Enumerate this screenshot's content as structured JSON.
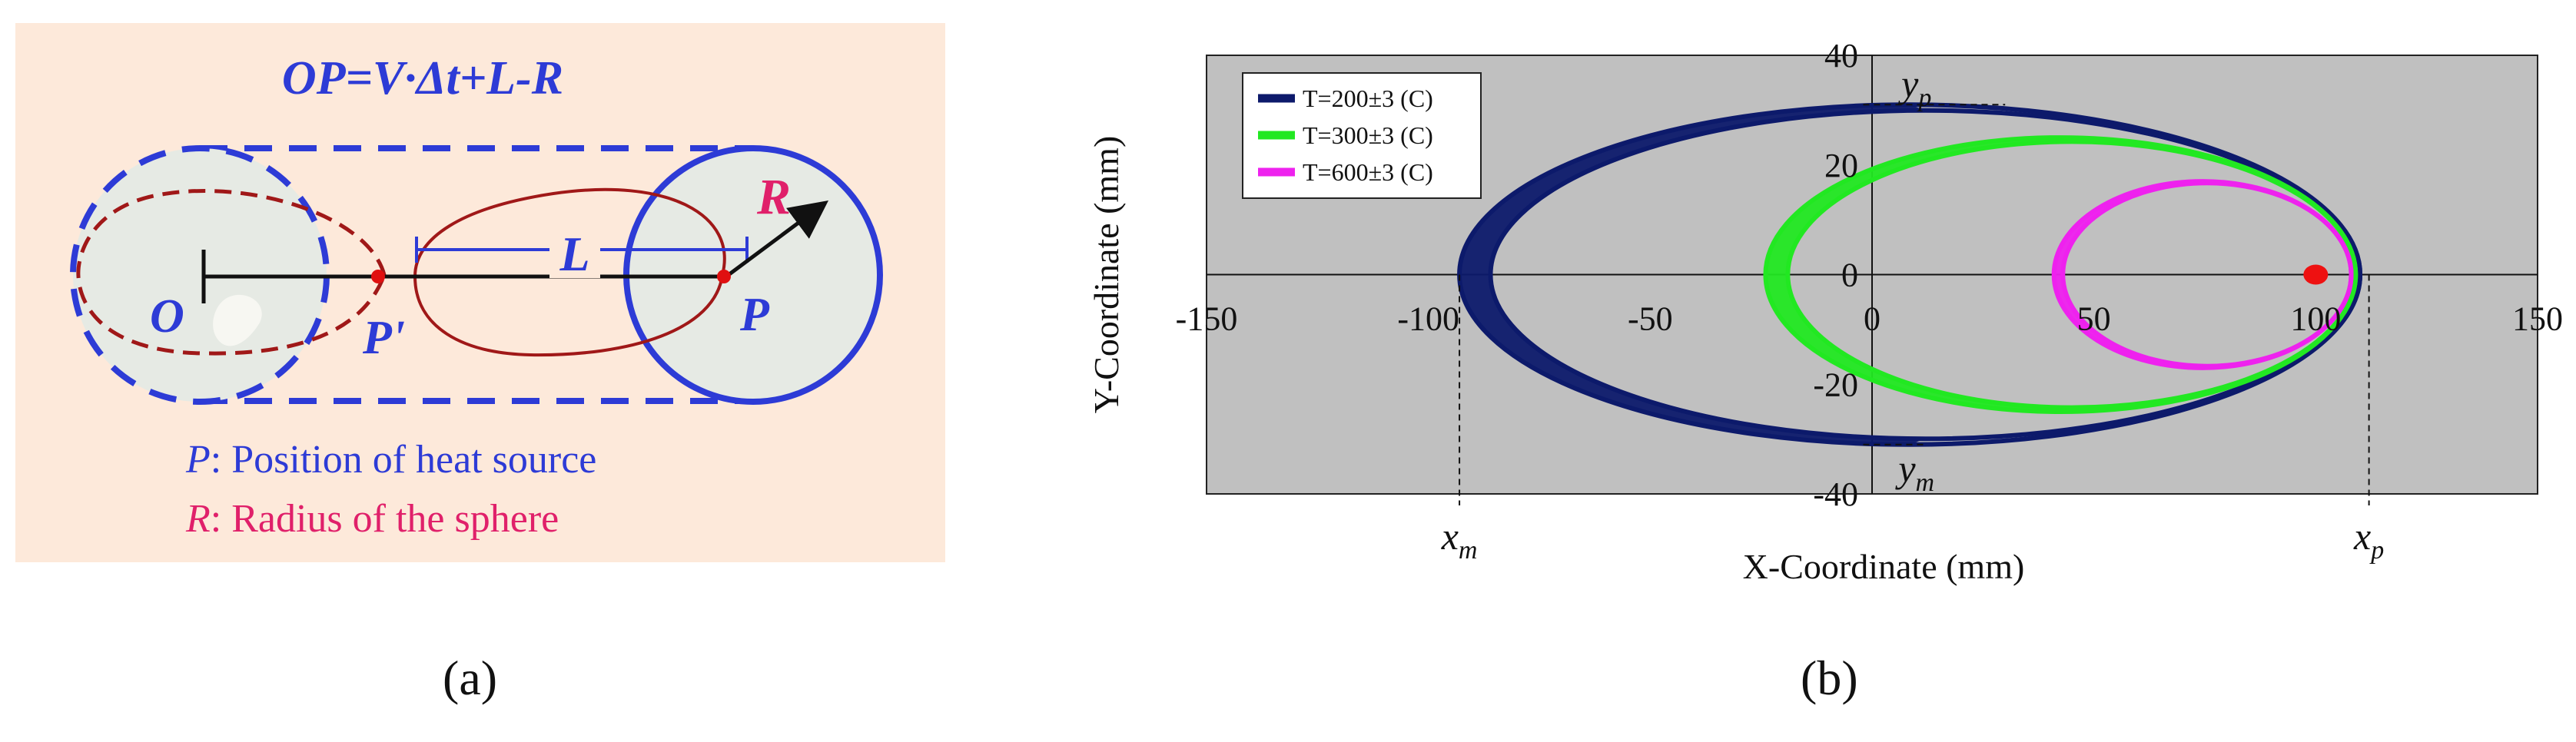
{
  "panel_a": {
    "equation": "OP=V·Δt+L-R",
    "label_O": "O",
    "label_P": "P",
    "label_P_prime": "P'",
    "label_L": "L",
    "label_R": "R",
    "legend_P_symbol": "P",
    "legend_P_text": ": Position of heat source",
    "legend_R_symbol": "R",
    "legend_R_text": ": Radius of the sphere",
    "caption": "(a)",
    "colors": {
      "background": "#fde9da",
      "blue": "#2d3bd6",
      "dark_red": "#a01818",
      "magenta": "#e0206a",
      "sphere_fill": "#e6eae4",
      "red_dot": "#e01010"
    }
  },
  "panel_b": {
    "caption": "(b)",
    "chart_data": {
      "type": "line",
      "xlabel": "X-Coordinate (mm)",
      "ylabel": "Y-Coordinate (mm)",
      "xlim": [
        -150,
        150
      ],
      "ylim": [
        -40,
        40
      ],
      "xticks": [
        "-150",
        "-100",
        "-50",
        "0",
        "50",
        "100",
        "150"
      ],
      "yticks": [
        "40",
        "20",
        "0",
        "-20",
        "-40"
      ],
      "legend_position": "top-left",
      "background": "#c0c0c0",
      "series": [
        {
          "name": "T=200±3 (C)",
          "color": "#0d1a6b",
          "x_min": -93,
          "x_max": 110,
          "y_half": 31,
          "band_width": 7
        },
        {
          "name": "T=300±3 (C)",
          "color": "#22e822",
          "x_min": -24,
          "x_max": 109,
          "y_half": 25,
          "band_width": 5
        },
        {
          "name": "T=600±3 (C)",
          "color": "#ee22ee",
          "x_min": 41,
          "x_max": 108,
          "y_half": 17,
          "band_width": 2
        }
      ],
      "heat_source": {
        "x": 100,
        "y": 0,
        "color": "#ee1111"
      },
      "annotations": {
        "x_m": {
          "label_main": "x",
          "label_sub": "m",
          "value": -93
        },
        "x_p": {
          "label_main": "x",
          "label_sub": "p",
          "value": 112
        },
        "y_p": {
          "label_main": "y",
          "label_sub": "p",
          "value": 31
        },
        "y_m": {
          "label_main": "y",
          "label_sub": "m",
          "value": -31
        }
      }
    }
  }
}
